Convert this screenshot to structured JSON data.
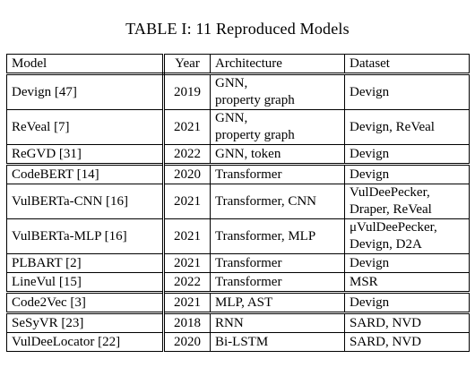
{
  "caption": "TABLE I: 11 Reproduced Models",
  "headers": [
    "Model",
    "Year",
    "Architecture",
    "Dataset"
  ],
  "rows": [
    {
      "model": "Devign [47]",
      "year": "2019",
      "arch": [
        "GNN,",
        "property graph"
      ],
      "dataset": "Devign"
    },
    {
      "model": "ReVeal [7]",
      "year": "2021",
      "arch": [
        "GNN,",
        "property graph"
      ],
      "dataset": "Devign, ReVeal"
    },
    {
      "model": "ReGVD [31]",
      "year": "2022",
      "arch": [
        "GNN, token"
      ],
      "dataset": "Devign"
    },
    {
      "model": "CodeBERT [14]",
      "year": "2020",
      "arch": [
        "Transformer"
      ],
      "dataset": "Devign"
    },
    {
      "model": "VulBERTa-CNN [16]",
      "year": "2021",
      "arch": [
        "Transformer, CNN"
      ],
      "dataset_lines": [
        "VulDeePecker,",
        "Draper, ReVeal"
      ]
    },
    {
      "model": "VulBERTa-MLP [16]",
      "year": "2021",
      "arch": [
        "Transformer, MLP"
      ],
      "dataset_lines": [
        "μVulDeePecker,",
        "Devign, D2A"
      ]
    },
    {
      "model": "PLBART [2]",
      "year": "2021",
      "arch": [
        "Transformer"
      ],
      "dataset": "Devign"
    },
    {
      "model": "LineVul [15]",
      "year": "2022",
      "arch": [
        "Transformer"
      ],
      "dataset": "MSR"
    },
    {
      "model": "Code2Vec [3]",
      "year": "2021",
      "arch": [
        "MLP, AST"
      ],
      "dataset": "Devign"
    },
    {
      "model": "SeSyVR [23]",
      "year": "2018",
      "arch": [
        "RNN"
      ],
      "dataset": "SARD, NVD"
    },
    {
      "model": "VulDeeLocator [22]",
      "year": "2020",
      "arch": [
        "Bi-LSTM"
      ],
      "dataset": "SARD, NVD"
    }
  ]
}
